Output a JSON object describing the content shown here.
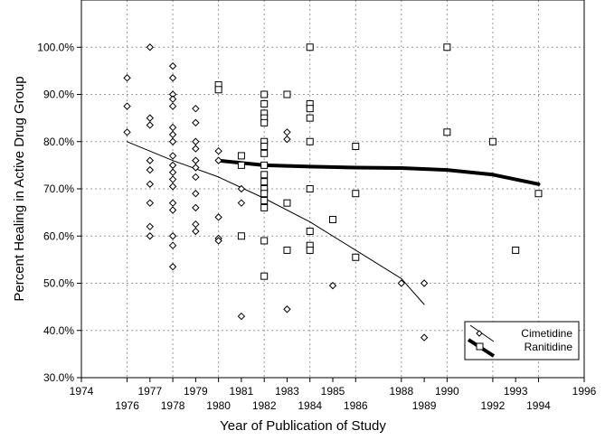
{
  "chart_data": {
    "type": "scatter",
    "xlabel": "Year of Publication of Study",
    "ylabel": "Percent Healing in Active Drug Group",
    "xlim": [
      1974,
      1996
    ],
    "ylim": [
      30,
      110
    ],
    "x_tick_labels": [
      "1974",
      "1976",
      "1977",
      "1978",
      "1979",
      "1980",
      "1981",
      "1982",
      "1983",
      "1984",
      "1985",
      "1986",
      "1988",
      "1989",
      "1990",
      "1992",
      "1993",
      "1994",
      "1996"
    ],
    "y_tick_labels": [
      "30.0%",
      "40.0%",
      "50.0%",
      "60.0%",
      "70.0%",
      "80.0%",
      "90.0%",
      "100.0%"
    ],
    "grid": true,
    "legend_position": "bottom-right",
    "series": [
      {
        "name": "Cimetidine",
        "marker": "circle",
        "color": "#000000",
        "points": [
          [
            1976,
            93.5
          ],
          [
            1976,
            87.5
          ],
          [
            1976,
            82
          ],
          [
            1977,
            100
          ],
          [
            1977,
            85
          ],
          [
            1977,
            83.5
          ],
          [
            1977,
            76
          ],
          [
            1977,
            74
          ],
          [
            1977,
            71
          ],
          [
            1977,
            67
          ],
          [
            1977,
            62
          ],
          [
            1977,
            60
          ],
          [
            1978,
            96
          ],
          [
            1978,
            93.5
          ],
          [
            1978,
            90
          ],
          [
            1978,
            89
          ],
          [
            1978,
            87.5
          ],
          [
            1978,
            83
          ],
          [
            1978,
            81.5
          ],
          [
            1978,
            80
          ],
          [
            1978,
            77
          ],
          [
            1978,
            75
          ],
          [
            1978,
            73.5
          ],
          [
            1978,
            72
          ],
          [
            1978,
            70.5
          ],
          [
            1978,
            67
          ],
          [
            1978,
            65.5
          ],
          [
            1978,
            60
          ],
          [
            1978,
            58
          ],
          [
            1978,
            53.5
          ],
          [
            1979,
            87
          ],
          [
            1979,
            84
          ],
          [
            1979,
            80
          ],
          [
            1979,
            78.5
          ],
          [
            1979,
            76
          ],
          [
            1979,
            74.5
          ],
          [
            1979,
            72.5
          ],
          [
            1979,
            69
          ],
          [
            1979,
            66
          ],
          [
            1979,
            62.5
          ],
          [
            1979,
            61
          ],
          [
            1980,
            91
          ],
          [
            1980,
            78
          ],
          [
            1980,
            76
          ],
          [
            1980,
            64
          ],
          [
            1980,
            59.5
          ],
          [
            1980,
            59
          ],
          [
            1981,
            70
          ],
          [
            1981,
            67
          ],
          [
            1981,
            43
          ],
          [
            1983,
            82
          ],
          [
            1983,
            80.5
          ],
          [
            1983,
            44.5
          ],
          [
            1985,
            49.5
          ],
          [
            1988,
            50
          ],
          [
            1989,
            50
          ],
          [
            1989,
            38.5
          ]
        ]
      },
      {
        "name": "Ranitidine",
        "marker": "square",
        "color": "#000000",
        "points": [
          [
            1980,
            92
          ],
          [
            1980,
            91
          ],
          [
            1981,
            77
          ],
          [
            1981,
            75
          ],
          [
            1981,
            60
          ],
          [
            1982,
            90
          ],
          [
            1982,
            88
          ],
          [
            1982,
            86
          ],
          [
            1982,
            85
          ],
          [
            1982,
            84
          ],
          [
            1982,
            80
          ],
          [
            1982,
            79
          ],
          [
            1982,
            77.5
          ],
          [
            1982,
            75
          ],
          [
            1982,
            73
          ],
          [
            1982,
            71.5
          ],
          [
            1982,
            70
          ],
          [
            1982,
            69
          ],
          [
            1982,
            67.5
          ],
          [
            1982,
            66
          ],
          [
            1982,
            59
          ],
          [
            1982,
            51.5
          ],
          [
            1983,
            90
          ],
          [
            1983,
            67
          ],
          [
            1983,
            57
          ],
          [
            1984,
            100
          ],
          [
            1984,
            88
          ],
          [
            1984,
            87
          ],
          [
            1984,
            85
          ],
          [
            1984,
            80
          ],
          [
            1984,
            70
          ],
          [
            1984,
            61
          ],
          [
            1984,
            58
          ],
          [
            1984,
            57
          ],
          [
            1985,
            63.5
          ],
          [
            1986,
            79
          ],
          [
            1986,
            69
          ],
          [
            1986,
            55.5
          ],
          [
            1990,
            100
          ],
          [
            1990,
            82
          ],
          [
            1992,
            80
          ],
          [
            1993,
            57
          ],
          [
            1994,
            69
          ]
        ]
      }
    ],
    "fit_lines": [
      {
        "name": "Cimetidine",
        "stroke_width": 1,
        "points": [
          [
            1976,
            80
          ],
          [
            1978,
            76
          ],
          [
            1980,
            72.5
          ],
          [
            1982,
            68
          ],
          [
            1984,
            63
          ],
          [
            1986,
            57
          ],
          [
            1988,
            51
          ],
          [
            1989,
            45.5
          ]
        ]
      },
      {
        "name": "Ranitidine",
        "stroke_width": 4,
        "points": [
          [
            1980,
            76
          ],
          [
            1982,
            75
          ],
          [
            1984,
            74.7
          ],
          [
            1986,
            74.5
          ],
          [
            1988,
            74.4
          ],
          [
            1990,
            74
          ],
          [
            1992,
            73
          ],
          [
            1994,
            71
          ]
        ]
      }
    ]
  }
}
